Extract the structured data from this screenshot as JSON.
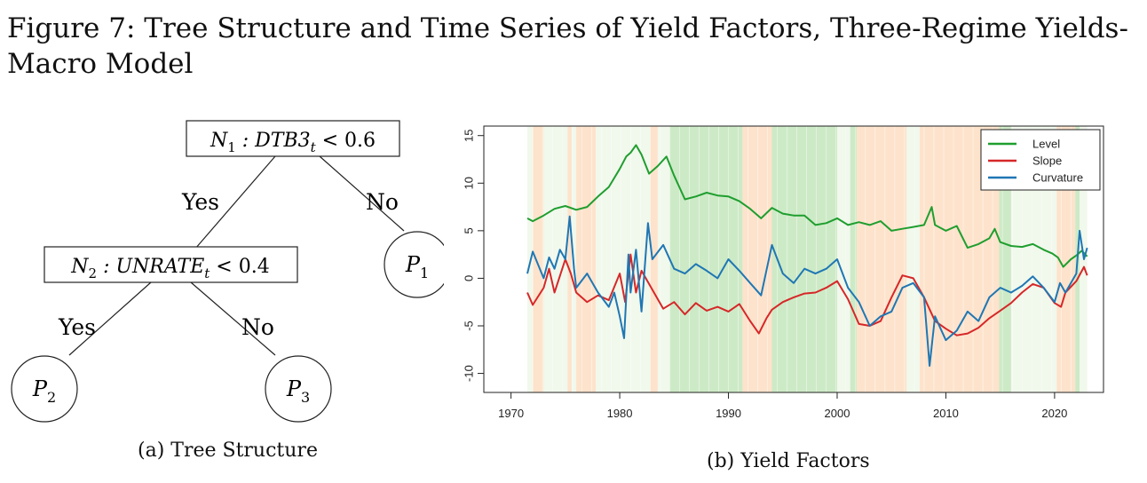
{
  "figure": {
    "title": "Figure 7: Tree Structure and Time Series of Yield Factors, Three-Regime Yields-Macro Model",
    "caption_a": "(a) Tree Structure",
    "caption_b": "(b) Yield Factors"
  },
  "tree": {
    "root": {
      "var": "N",
      "sub": "1",
      "rest": " : DTB3",
      "time_sub": "t",
      "cmp": " < 0.6"
    },
    "node2": {
      "var": "N",
      "sub": "2",
      "rest": " : UNRATE",
      "time_sub": "t",
      "cmp": " < 0.4"
    },
    "leaf1": {
      "var": "P",
      "sub": "1"
    },
    "leaf2": {
      "var": "P",
      "sub": "2"
    },
    "leaf3": {
      "var": "P",
      "sub": "3"
    },
    "edge_yes_1": "Yes",
    "edge_no_1": "No",
    "edge_yes_2": "Yes",
    "edge_no_2": "No"
  },
  "colors": {
    "level": "#1f9e2f",
    "slope": "#d62728",
    "curvature": "#1f77b4",
    "regime_green": "#cdeac6",
    "regime_orange": "#fde3cc",
    "regime_pale": "#f1f8ec"
  },
  "chart_data": {
    "type": "line",
    "x_ticks": [
      1970,
      1980,
      1990,
      2000,
      2010,
      2020
    ],
    "y_ticks": [
      -10,
      -5,
      0,
      5,
      10,
      15
    ],
    "xlim": [
      1967.5,
      2024.5
    ],
    "ylim": [
      -12,
      16
    ],
    "legend_placement": "top-right",
    "regimes": [
      {
        "start": 1971.5,
        "end": 1972.0,
        "regime": "pale"
      },
      {
        "start": 1972.0,
        "end": 1973.0,
        "regime": "orange"
      },
      {
        "start": 1973.0,
        "end": 1975.2,
        "regime": "pale"
      },
      {
        "start": 1975.2,
        "end": 1975.6,
        "regime": "orange"
      },
      {
        "start": 1975.6,
        "end": 1976.0,
        "regime": "pale"
      },
      {
        "start": 1976.0,
        "end": 1977.8,
        "regime": "orange"
      },
      {
        "start": 1977.8,
        "end": 1982.8,
        "regime": "pale"
      },
      {
        "start": 1982.8,
        "end": 1983.5,
        "regime": "orange"
      },
      {
        "start": 1983.5,
        "end": 1984.6,
        "regime": "pale"
      },
      {
        "start": 1984.6,
        "end": 1991.3,
        "regime": "green"
      },
      {
        "start": 1991.3,
        "end": 1994.0,
        "regime": "orange"
      },
      {
        "start": 1994.0,
        "end": 2000.0,
        "regime": "green"
      },
      {
        "start": 2000.0,
        "end": 2001.2,
        "regime": "pale"
      },
      {
        "start": 2001.2,
        "end": 2001.8,
        "regime": "green"
      },
      {
        "start": 2001.8,
        "end": 2006.4,
        "regime": "orange"
      },
      {
        "start": 2006.4,
        "end": 2007.6,
        "regime": "pale"
      },
      {
        "start": 2007.6,
        "end": 2014.9,
        "regime": "orange"
      },
      {
        "start": 2014.9,
        "end": 2016.0,
        "regime": "green"
      },
      {
        "start": 2016.0,
        "end": 2020.2,
        "regime": "pale"
      },
      {
        "start": 2020.2,
        "end": 2021.9,
        "regime": "orange"
      },
      {
        "start": 2021.9,
        "end": 2022.3,
        "regime": "green"
      },
      {
        "start": 2022.3,
        "end": 2023.0,
        "regime": "pale"
      }
    ],
    "series": [
      {
        "name": "Level",
        "color_key": "level",
        "points": [
          [
            1971.5,
            6.3
          ],
          [
            1972,
            6.0
          ],
          [
            1973,
            6.6
          ],
          [
            1974,
            7.3
          ],
          [
            1975,
            7.6
          ],
          [
            1976,
            7.2
          ],
          [
            1977,
            7.5
          ],
          [
            1978,
            8.6
          ],
          [
            1979,
            9.6
          ],
          [
            1980,
            11.5
          ],
          [
            1980.6,
            12.8
          ],
          [
            1981,
            13.2
          ],
          [
            1981.5,
            14.0
          ],
          [
            1982,
            13.0
          ],
          [
            1982.7,
            11.0
          ],
          [
            1983.5,
            11.8
          ],
          [
            1984.3,
            12.8
          ],
          [
            1985,
            10.8
          ],
          [
            1986,
            8.3
          ],
          [
            1987,
            8.6
          ],
          [
            1988,
            9.0
          ],
          [
            1989,
            8.7
          ],
          [
            1990,
            8.6
          ],
          [
            1991,
            8.1
          ],
          [
            1992,
            7.3
          ],
          [
            1993,
            6.3
          ],
          [
            1994,
            7.4
          ],
          [
            1995,
            6.8
          ],
          [
            1996,
            6.6
          ],
          [
            1997,
            6.6
          ],
          [
            1998,
            5.6
          ],
          [
            1999,
            5.8
          ],
          [
            2000,
            6.3
          ],
          [
            2001,
            5.6
          ],
          [
            2002,
            5.9
          ],
          [
            2003,
            5.6
          ],
          [
            2004,
            6.0
          ],
          [
            2005,
            5.0
          ],
          [
            2006,
            5.2
          ],
          [
            2007,
            5.4
          ],
          [
            2008,
            5.6
          ],
          [
            2008.7,
            7.5
          ],
          [
            2009,
            5.6
          ],
          [
            2010,
            5.0
          ],
          [
            2011,
            5.5
          ],
          [
            2012,
            3.2
          ],
          [
            2013,
            3.6
          ],
          [
            2014,
            4.2
          ],
          [
            2014.5,
            5.2
          ],
          [
            2015,
            3.8
          ],
          [
            2016,
            3.4
          ],
          [
            2017,
            3.3
          ],
          [
            2018,
            3.6
          ],
          [
            2019,
            3.0
          ],
          [
            2019.8,
            2.6
          ],
          [
            2020.3,
            2.2
          ],
          [
            2020.8,
            1.2
          ],
          [
            2021.5,
            2.0
          ],
          [
            2022,
            2.4
          ],
          [
            2022.5,
            2.9
          ],
          [
            2023,
            2.3
          ]
        ]
      },
      {
        "name": "Slope",
        "color_key": "slope",
        "points": [
          [
            1971.5,
            -1.5
          ],
          [
            1972,
            -2.8
          ],
          [
            1973,
            -1.0
          ],
          [
            1973.5,
            1.0
          ],
          [
            1974,
            -1.5
          ],
          [
            1975,
            2.0
          ],
          [
            1975.5,
            0.5
          ],
          [
            1976,
            -1.5
          ],
          [
            1977,
            -2.5
          ],
          [
            1978,
            -1.8
          ],
          [
            1979,
            -2.3
          ],
          [
            1980,
            0.5
          ],
          [
            1980.5,
            -2.5
          ],
          [
            1981,
            2.5
          ],
          [
            1981.5,
            -1.5
          ],
          [
            1982,
            0.8
          ],
          [
            1983,
            -1.2
          ],
          [
            1984,
            -3.2
          ],
          [
            1985,
            -2.5
          ],
          [
            1986,
            -3.8
          ],
          [
            1987,
            -2.6
          ],
          [
            1988,
            -3.4
          ],
          [
            1989,
            -3.0
          ],
          [
            1990,
            -3.5
          ],
          [
            1991,
            -2.7
          ],
          [
            1992,
            -4.5
          ],
          [
            1992.8,
            -5.8
          ],
          [
            1993.5,
            -4.2
          ],
          [
            1994,
            -3.3
          ],
          [
            1995,
            -2.5
          ],
          [
            1996,
            -2.0
          ],
          [
            1997,
            -1.6
          ],
          [
            1998,
            -1.5
          ],
          [
            1999,
            -1.0
          ],
          [
            2000,
            -0.3
          ],
          [
            2001,
            -2.2
          ],
          [
            2002,
            -4.8
          ],
          [
            2003,
            -5.0
          ],
          [
            2004,
            -4.5
          ],
          [
            2005,
            -2.0
          ],
          [
            2006,
            0.3
          ],
          [
            2007,
            0.0
          ],
          [
            2008,
            -2.0
          ],
          [
            2009,
            -4.5
          ],
          [
            2010,
            -5.3
          ],
          [
            2011,
            -6.0
          ],
          [
            2012,
            -5.8
          ],
          [
            2013,
            -5.2
          ],
          [
            2014,
            -4.2
          ],
          [
            2015,
            -3.4
          ],
          [
            2016,
            -2.6
          ],
          [
            2017,
            -1.5
          ],
          [
            2018,
            -0.6
          ],
          [
            2019,
            -1.0
          ],
          [
            2020,
            -2.6
          ],
          [
            2020.6,
            -3.0
          ],
          [
            2021,
            -1.5
          ],
          [
            2022,
            -0.3
          ],
          [
            2022.7,
            1.2
          ],
          [
            2023,
            0.3
          ]
        ]
      },
      {
        "name": "Curvature",
        "color_key": "curvature",
        "points": [
          [
            1971.5,
            0.5
          ],
          [
            1972,
            2.8
          ],
          [
            1973,
            0.0
          ],
          [
            1973.5,
            2.2
          ],
          [
            1974,
            1.0
          ],
          [
            1974.5,
            3.0
          ],
          [
            1975,
            2.0
          ],
          [
            1975.4,
            6.5
          ],
          [
            1975.8,
            1.0
          ],
          [
            1976,
            -1.0
          ],
          [
            1977,
            0.5
          ],
          [
            1978,
            -1.5
          ],
          [
            1979,
            -3.0
          ],
          [
            1979.5,
            -1.5
          ],
          [
            1980,
            -4.0
          ],
          [
            1980.4,
            -6.3
          ],
          [
            1980.8,
            2.5
          ],
          [
            1981,
            -1.5
          ],
          [
            1981.5,
            3.0
          ],
          [
            1982,
            -3.5
          ],
          [
            1982.6,
            5.8
          ],
          [
            1983,
            2.0
          ],
          [
            1984,
            3.5
          ],
          [
            1985,
            1.0
          ],
          [
            1986,
            0.5
          ],
          [
            1987,
            1.5
          ],
          [
            1988,
            0.8
          ],
          [
            1989,
            0.0
          ],
          [
            1990,
            2.0
          ],
          [
            1991,
            0.8
          ],
          [
            1992,
            -0.5
          ],
          [
            1993,
            -1.8
          ],
          [
            1994,
            3.5
          ],
          [
            1995,
            0.5
          ],
          [
            1996,
            -0.5
          ],
          [
            1997,
            1.0
          ],
          [
            1998,
            0.5
          ],
          [
            1999,
            1.0
          ],
          [
            2000,
            2.0
          ],
          [
            2001,
            -1.0
          ],
          [
            2002,
            -2.5
          ],
          [
            2003,
            -5.0
          ],
          [
            2004,
            -4.0
          ],
          [
            2005,
            -3.5
          ],
          [
            2006,
            -1.0
          ],
          [
            2007,
            -0.5
          ],
          [
            2008,
            -2.0
          ],
          [
            2008.5,
            -9.2
          ],
          [
            2009,
            -4.0
          ],
          [
            2010,
            -6.5
          ],
          [
            2011,
            -5.5
          ],
          [
            2012,
            -3.5
          ],
          [
            2013,
            -4.5
          ],
          [
            2014,
            -2.0
          ],
          [
            2015,
            -1.0
          ],
          [
            2016,
            -1.5
          ],
          [
            2017,
            -0.8
          ],
          [
            2018,
            0.2
          ],
          [
            2019,
            -1.0
          ],
          [
            2020,
            -2.5
          ],
          [
            2020.5,
            -0.5
          ],
          [
            2021,
            -1.5
          ],
          [
            2022,
            0.5
          ],
          [
            2022.3,
            5.0
          ],
          [
            2022.7,
            2.0
          ],
          [
            2023,
            3.2
          ]
        ]
      }
    ]
  }
}
